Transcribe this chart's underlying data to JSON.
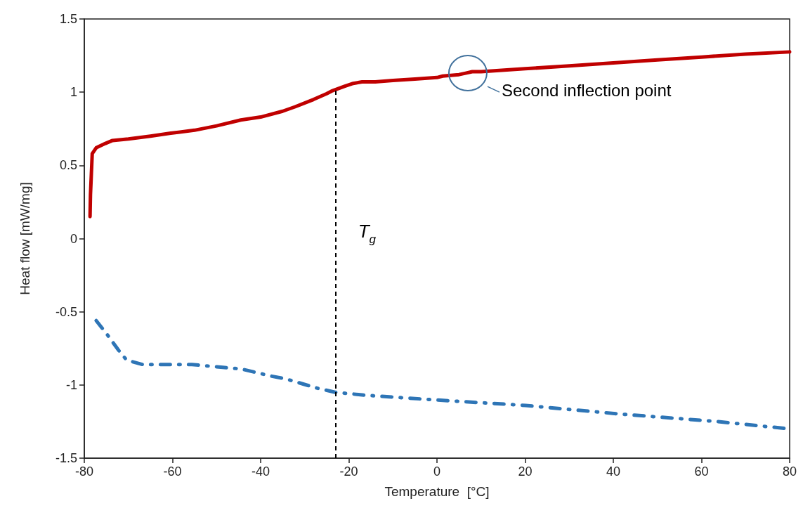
{
  "chart_data": {
    "type": "line",
    "xlabel": "Temperature  [°C]",
    "ylabel": "Heat flow [mW/mg]",
    "xlim": [
      -80,
      80
    ],
    "xticks": [
      -80,
      -60,
      -40,
      -20,
      0,
      20,
      40,
      60,
      80
    ],
    "ylim": [
      -1.5,
      1.5
    ],
    "yticks": [
      -1.5,
      -1,
      -0.5,
      0,
      0.5,
      1,
      1.5
    ],
    "grid": false,
    "marker": "none",
    "series": [
      {
        "color": "#c00000",
        "line_style": "solid",
        "x": [
          -78.7,
          -78.6,
          -78.4,
          -78.2,
          -77.3,
          -75.2,
          -73.6,
          -70,
          -65,
          -60.4,
          -55,
          -50,
          -44.5,
          -40,
          -35,
          -32.2,
          -28,
          -25,
          -23.7,
          -21,
          -19,
          -17,
          -14,
          -10,
          -5,
          0,
          1.3,
          5,
          6.5,
          8,
          10,
          20,
          30,
          40,
          50,
          60,
          70,
          80
        ],
        "values": [
          0.15,
          0.3,
          0.44,
          0.58,
          0.62,
          0.65,
          0.67,
          0.68,
          0.7,
          0.72,
          0.74,
          0.77,
          0.81,
          0.83,
          0.87,
          0.9,
          0.95,
          0.99,
          1.01,
          1.04,
          1.06,
          1.07,
          1.07,
          1.08,
          1.09,
          1.1,
          1.11,
          1.12,
          1.13,
          1.14,
          1.14,
          1.16,
          1.18,
          1.2,
          1.22,
          1.24,
          1.26,
          1.275
        ]
      },
      {
        "color": "#2e75b6",
        "line_style": "dashed",
        "x": [
          -77.3,
          -74.7,
          -72.3,
          -70.4,
          -66.8,
          -60.4,
          -55.6,
          -48.6,
          -44.5,
          -37.5,
          -34.1,
          -27.4,
          -23.1,
          -16.3,
          -1.4,
          20.1,
          42.1,
          63.6,
          80
        ],
        "values": [
          -0.56,
          -0.66,
          -0.76,
          -0.83,
          -0.86,
          -0.86,
          -0.86,
          -0.88,
          -0.89,
          -0.94,
          -0.96,
          -1.02,
          -1.05,
          -1.07,
          -1.1,
          -1.14,
          -1.2,
          -1.25,
          -1.3
        ]
      }
    ],
    "ref_lines": [
      {
        "axis": "x",
        "value": -23,
        "label": "T$_{g}$",
        "color": "#000000",
        "line_style": "dashed"
      }
    ],
    "annotations": [
      {
        "text": "Second inflection point",
        "x": 7,
        "y": 1.13
      }
    ]
  }
}
